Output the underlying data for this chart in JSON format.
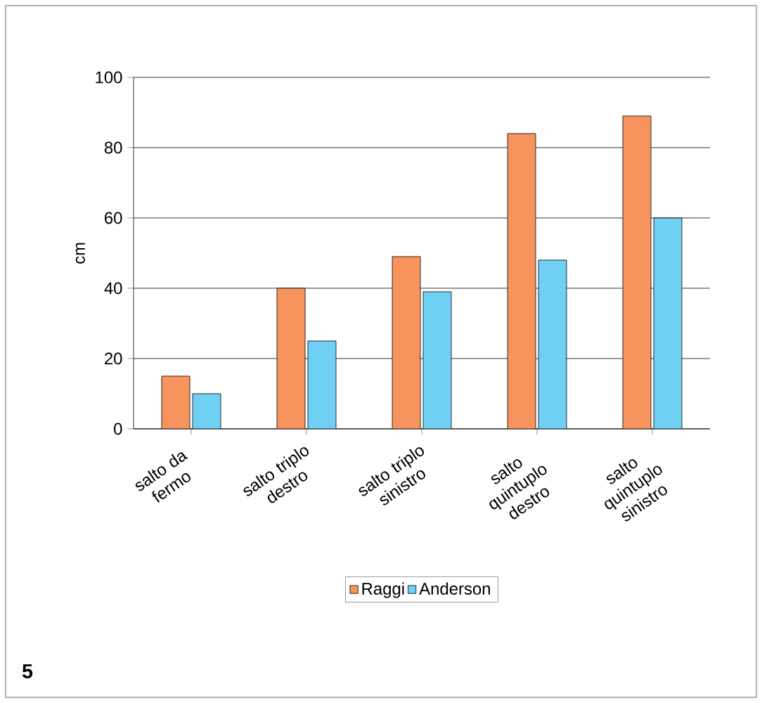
{
  "chart_data": {
    "type": "bar",
    "ylabel": "cm",
    "categories": [
      "salto da fermo",
      "salto triplo destro",
      "salto triplo sinistro",
      "salto quintuplo destro",
      "salto quintuplo sinistro"
    ],
    "series": [
      {
        "name": "Raggi",
        "color": "#f7935c",
        "values": [
          15,
          40,
          49,
          84,
          89
        ]
      },
      {
        "name": "Anderson",
        "color": "#6fd0f4",
        "values": [
          10,
          25,
          39,
          48,
          60
        ]
      }
    ],
    "ylim": [
      0,
      100
    ],
    "yticks": [
      0,
      20,
      40,
      60,
      80,
      100
    ],
    "grid": "y",
    "legend": "bottom",
    "annotations": [
      "5"
    ]
  }
}
